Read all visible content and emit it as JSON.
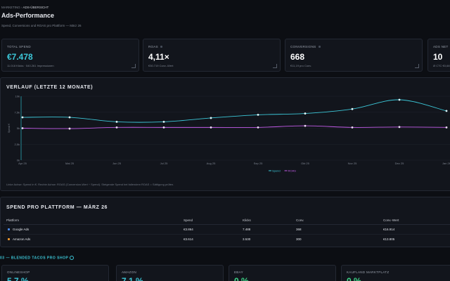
{
  "breadcrumb": [
    "MARKETING",
    "ADS-ÜBERSICHT"
  ],
  "header": {
    "title": "Ads-Performance",
    "subtitle": "Spend, Conversions und ROAS pro Plattform — März 26"
  },
  "kpis": [
    {
      "label": "TOTAL SPEND",
      "value": "€7.478",
      "sub": "11.018 Klicks · 540.261 Impressionen"
    },
    {
      "label": "ROAS",
      "value": "4,11×",
      "sub": "€30.719 Conv.-Wert"
    },
    {
      "label": "CONVERSIONS",
      "value": "668",
      "sub": "€11,19 pro Conv."
    },
    {
      "label": "ADS NET",
      "value": "10",
      "sub": "Ø CTC €0,68"
    }
  ],
  "chart_data": {
    "type": "line",
    "title": "VERLAUF (LETZTE 12 MONATE)",
    "y_label": "Spend €",
    "categories": [
      "Apr 25",
      "Mai 25",
      "Jun 25",
      "Jul 25",
      "Aug 25",
      "Sep 25",
      "Okt 25",
      "Nov 25",
      "Dez 25",
      "Jan 26"
    ],
    "series": [
      {
        "name": "Spend",
        "color": "#3cc7d8",
        "values": [
          6700,
          6700,
          6000,
          6000,
          6600,
          7100,
          7300,
          8000,
          9450,
          7700
        ]
      },
      {
        "name": "ROAS",
        "color": "#c25be8",
        "axis": "y2",
        "values": [
          4.0,
          3.95,
          4.1,
          4.1,
          4.1,
          4.1,
          4.3,
          4.1,
          4.15,
          4.1
        ]
      }
    ],
    "ylim": [
      0,
      10000
    ],
    "yticks": [
      {
        "value": 0,
        "label": "0k"
      },
      {
        "value": 2500,
        "label": "2,5k"
      },
      {
        "value": 5000,
        "label": "5k"
      },
      {
        "value": 7500,
        "label": "7,5k"
      },
      {
        "value": 10000,
        "label": "10k"
      }
    ],
    "y2lim": [
      0,
      8
    ],
    "grid": true,
    "legend": "bottom"
  },
  "chart_note": "Linke Achse: Spend in €. Rechte Achse: ROAS (Conversion-Wert ÷ Spend). Steigende Spend bei fallendem ROAS = Sättigung prüfen.",
  "table": {
    "title": "SPEND PRO PLATTFORM — MÄRZ 26",
    "columns": [
      "Plattform",
      "Spend",
      "Klicks",
      "Conv.",
      "Conv.-Wert"
    ],
    "rows": [
      [
        "Google Ads",
        "€3.864",
        "7.488",
        "368",
        "€16.914"
      ],
      [
        "Amazon Ads",
        "€3.614",
        "3.530",
        "300",
        "€13.805"
      ]
    ]
  },
  "section": {
    "number": "03",
    "title": "— BLENDED TACOS PRO SHOP"
  },
  "shops": [
    {
      "label": "ONLINESHOP",
      "value": "5,7 %"
    },
    {
      "label": "AMAZON",
      "value": "7,1 %"
    },
    {
      "label": "EBAY",
      "value": "0 %"
    },
    {
      "label": "KAUFLAND MARKTPLATZ",
      "value": "0 %"
    }
  ]
}
